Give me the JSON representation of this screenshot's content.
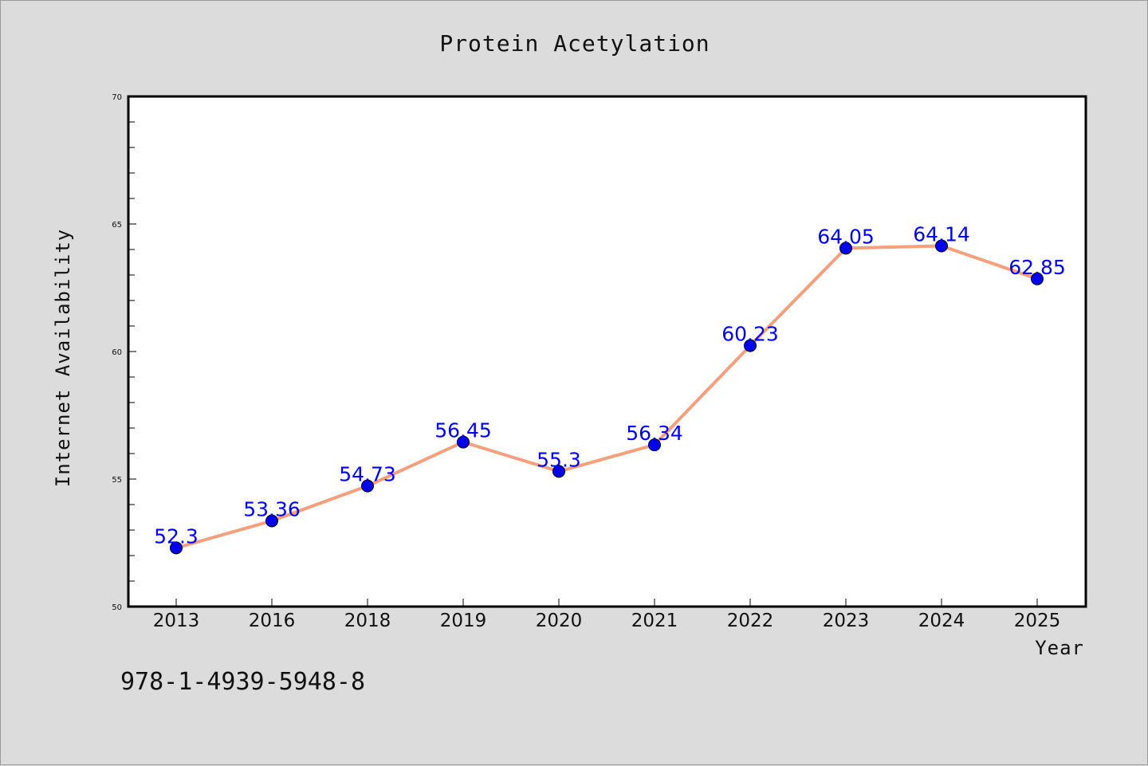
{
  "chart_data": {
    "type": "line",
    "title": "Protein Acetylation",
    "xlabel": "Year",
    "ylabel": "Internet Availability",
    "categories": [
      "2013",
      "2016",
      "2018",
      "2019",
      "2020",
      "2021",
      "2022",
      "2023",
      "2024",
      "2025"
    ],
    "series": [
      {
        "values": [
          52.3,
          53.36,
          54.73,
          56.45,
          55.3,
          56.34,
          60.23,
          64.05,
          64.14,
          62.85
        ],
        "labels": [
          "52.3",
          "53.36",
          "54.73",
          "56.45",
          "55.3",
          "56.34",
          "60.23",
          "64.05",
          "64.14",
          "62.85"
        ]
      }
    ],
    "ylim": [
      50,
      70
    ],
    "yticks": [
      "50",
      "55",
      "60",
      "65",
      "70"
    ],
    "grid": false,
    "line_color": "#f4a07c",
    "marker_color": "#0000ee",
    "label_color": "#0000ee"
  },
  "footnote": "978-1-4939-5948-8"
}
